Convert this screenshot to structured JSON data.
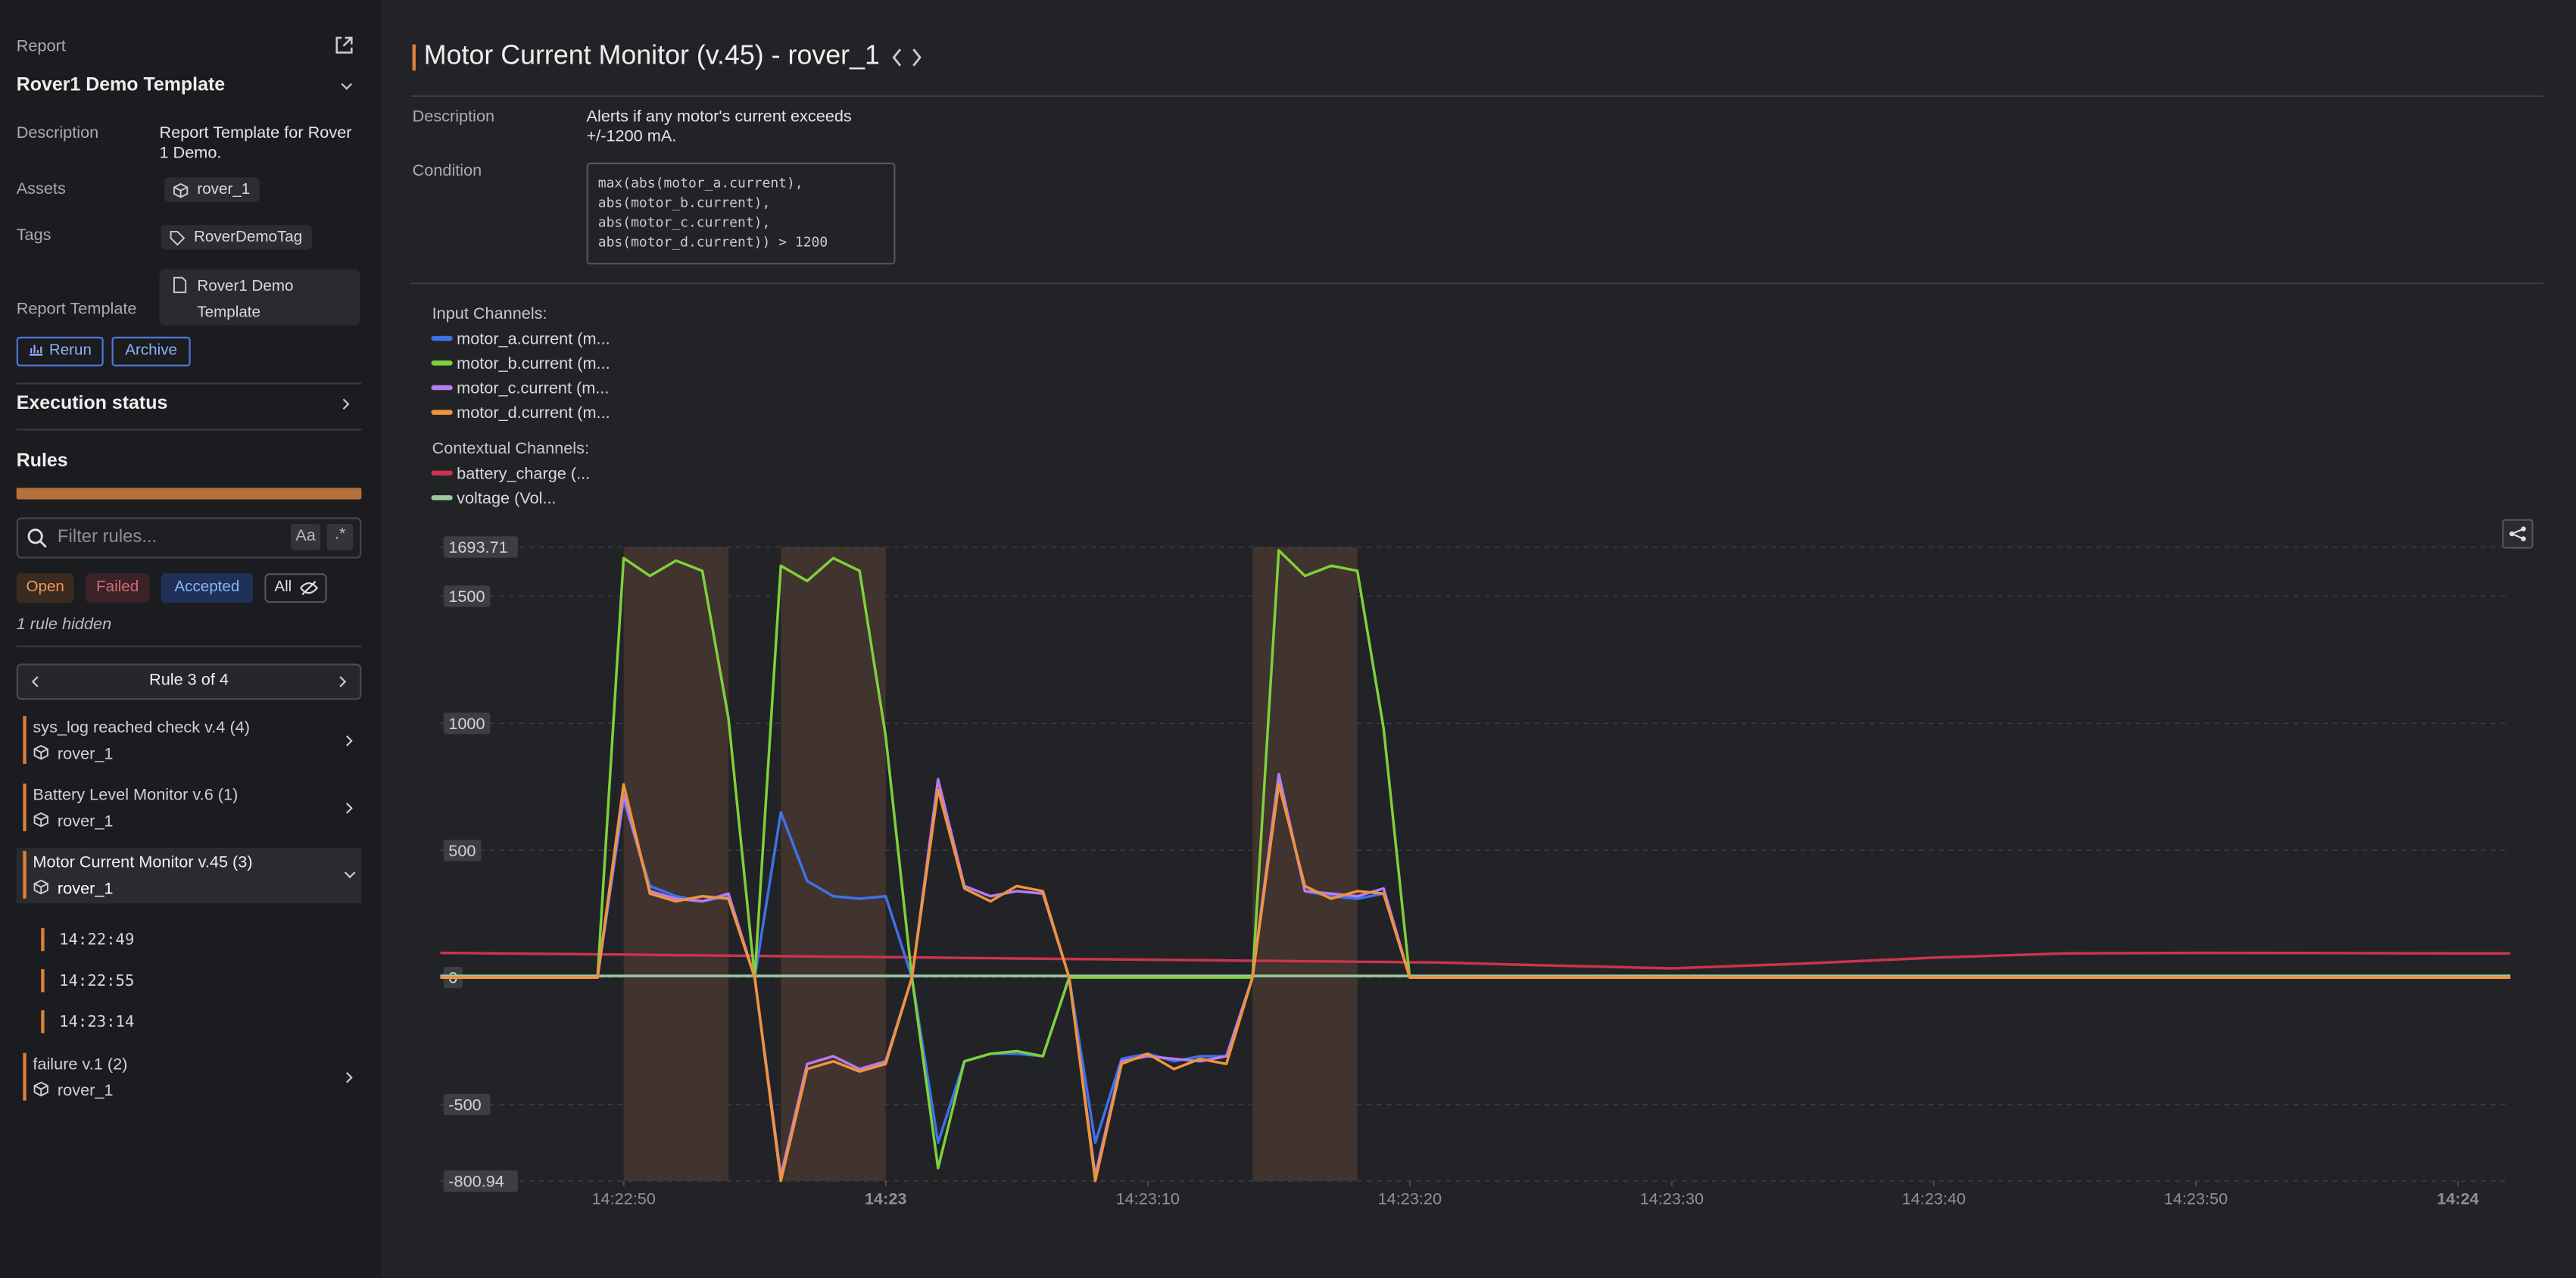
{
  "sidebar": {
    "report_label": "Report",
    "report_name": "Rover1 Demo Template",
    "details": [
      {
        "label": "Description",
        "value": "Report Template for Rover 1 Demo."
      },
      {
        "label": "Assets",
        "value": "rover_1"
      },
      {
        "label": "Tags",
        "value": "RoverDemoTag"
      },
      {
        "label": "Report Template",
        "value": "Rover1 Demo Template"
      }
    ],
    "buttons": [
      "Rerun",
      "Archive"
    ],
    "execution_status": "Execution status",
    "rules_title": "Rules",
    "filter_placeholder": "Filter rules...",
    "filter_options": [
      "Aa",
      ".*"
    ],
    "status_filters": [
      "Open",
      "Failed",
      "Accepted",
      "All"
    ],
    "hidden_note": "1 rule hidden",
    "pager": "Rule 3 of 4",
    "rules": [
      {
        "name": "sys_log reached check v.4 (4)",
        "asset": "rover_1"
      },
      {
        "name": "Battery Level Monitor v.6 (1)",
        "asset": "rover_1"
      },
      {
        "name": "Motor Current Monitor v.45 (3)",
        "asset": "rover_1",
        "times": [
          "14:22:49",
          "14:22:55",
          "14:23:14"
        ]
      },
      {
        "name": "failure v.1 (2)",
        "asset": "rover_1"
      }
    ]
  },
  "main": {
    "title": "Motor Current Monitor (v.45) - rover_1",
    "description_label": "Description",
    "description": "Alerts if any motor's current exceeds +/-1200 mA.",
    "condition_label": "Condition",
    "condition": "max(abs(motor_a.current),\nabs(motor_b.current),\nabs(motor_c.current),\nabs(motor_d.current)) > 1200",
    "input_channels_label": "Input Channels:",
    "contextual_channels_label": "Contextual Channels:"
  },
  "chart_data": {
    "type": "line",
    "x": [
      "14:22:43",
      "14:22:44",
      "14:22:45",
      "14:22:46",
      "14:22:47",
      "14:22:48",
      "14:22:49",
      "14:22:50",
      "14:22:51",
      "14:22:52",
      "14:22:53",
      "14:22:54",
      "14:22:55",
      "14:22:56",
      "14:22:57",
      "14:22:58",
      "14:22:59",
      "14:23:00",
      "14:23:01",
      "14:23:02",
      "14:23:03",
      "14:23:04",
      "14:23:05",
      "14:23:06",
      "14:23:07",
      "14:23:08",
      "14:23:09",
      "14:23:10",
      "14:23:11",
      "14:23:12",
      "14:23:13",
      "14:23:14",
      "14:23:15",
      "14:23:16",
      "14:23:17",
      "14:23:18",
      "14:23:19",
      "14:23:20",
      "14:23:21",
      "14:23:25",
      "14:23:30",
      "14:23:35",
      "14:23:40",
      "14:23:45",
      "14:23:50",
      "14:23:55",
      "14:24:00",
      "14:24:02"
    ],
    "series": [
      {
        "name": "motor_a.current (m...",
        "channel": "input",
        "color": "#3d72e8",
        "values": [
          0,
          0,
          0,
          0,
          0,
          0,
          0,
          700,
          360,
          320,
          300,
          320,
          0,
          650,
          380,
          320,
          310,
          320,
          0,
          -650,
          -330,
          -300,
          -300,
          -310,
          0,
          -650,
          -320,
          -300,
          -330,
          -310,
          -310,
          0,
          780,
          340,
          320,
          310,
          330,
          0,
          0,
          0,
          0,
          0,
          0,
          0,
          0,
          0,
          0,
          0
        ]
      },
      {
        "name": "motor_b.current (m...",
        "channel": "input",
        "color": "#7fd13b",
        "values": [
          0,
          0,
          0,
          0,
          0,
          0,
          0,
          1650,
          1580,
          1640,
          1600,
          1020,
          0,
          1620,
          1560,
          1650,
          1600,
          950,
          0,
          -750,
          -330,
          -300,
          -290,
          -310,
          0,
          0,
          0,
          0,
          0,
          0,
          0,
          0,
          1680,
          1580,
          1620,
          1600,
          980,
          0,
          0,
          0,
          0,
          0,
          0,
          0,
          0,
          0,
          0,
          0
        ]
      },
      {
        "name": "motor_c.current (m...",
        "channel": "input",
        "color": "#b77cf0",
        "values": [
          0,
          0,
          0,
          0,
          0,
          0,
          0,
          720,
          340,
          310,
          300,
          330,
          0,
          -780,
          -340,
          -310,
          -360,
          -330,
          0,
          780,
          360,
          320,
          340,
          330,
          0,
          -780,
          -330,
          -310,
          -320,
          -330,
          -310,
          0,
          800,
          340,
          330,
          320,
          350,
          0,
          0,
          0,
          0,
          0,
          0,
          0,
          0,
          0,
          0,
          0
        ]
      },
      {
        "name": "motor_d.current (m...",
        "channel": "input",
        "color": "#f0943a",
        "values": [
          0,
          0,
          0,
          0,
          0,
          0,
          0,
          760,
          330,
          300,
          320,
          310,
          0,
          -800,
          -360,
          -330,
          -370,
          -340,
          0,
          740,
          350,
          300,
          360,
          340,
          0,
          -800,
          -340,
          -300,
          -360,
          -320,
          -340,
          0,
          760,
          360,
          310,
          340,
          330,
          0,
          0,
          0,
          0,
          0,
          0,
          0,
          0,
          0,
          0,
          0
        ]
      },
      {
        "name": "battery_charge (...",
        "channel": "contextual",
        "color": "#c9344d",
        "values": [
          97,
          96,
          95,
          94,
          93,
          92,
          91,
          90,
          89,
          88,
          87,
          86,
          85,
          84,
          83,
          82,
          81,
          80,
          79,
          78,
          77,
          76,
          75,
          74,
          73,
          72,
          71,
          70,
          69,
          68,
          67,
          66,
          65,
          64,
          63,
          62,
          61,
          60,
          59,
          48,
          36,
          55,
          78,
          95,
          97,
          96,
          95,
          95
        ]
      },
      {
        "name": "voltage (Vol...",
        "channel": "contextual",
        "color": "#9ec9a0",
        "values": [
          6,
          6,
          6,
          6,
          6,
          6,
          6,
          6,
          6,
          6,
          6,
          6,
          6,
          6,
          6,
          6,
          6,
          6,
          6,
          6,
          6,
          6,
          6,
          6,
          6,
          6,
          6,
          6,
          6,
          6,
          6,
          6,
          6,
          6,
          6,
          6,
          6,
          6,
          6,
          6,
          6,
          6,
          6,
          6,
          6,
          6,
          6,
          6
        ]
      }
    ],
    "regions": [
      [
        "14:22:50",
        "14:22:54"
      ],
      [
        "14:22:56",
        "14:23:00"
      ],
      [
        "14:23:14",
        "14:23:18"
      ]
    ],
    "region_color": "#8a5a3c",
    "xlim": [
      "14:22:43",
      "14:24:02"
    ],
    "xticks": [
      "14:22:50",
      "14:23",
      "14:23:10",
      "14:23:20",
      "14:23:30",
      "14:23:40",
      "14:23:50",
      "14:24"
    ],
    "ylim": [
      -800.94,
      1693.71
    ],
    "yticks": [
      -800.94,
      -500,
      0,
      500,
      1000,
      1500,
      1693.71
    ],
    "grid": true
  }
}
